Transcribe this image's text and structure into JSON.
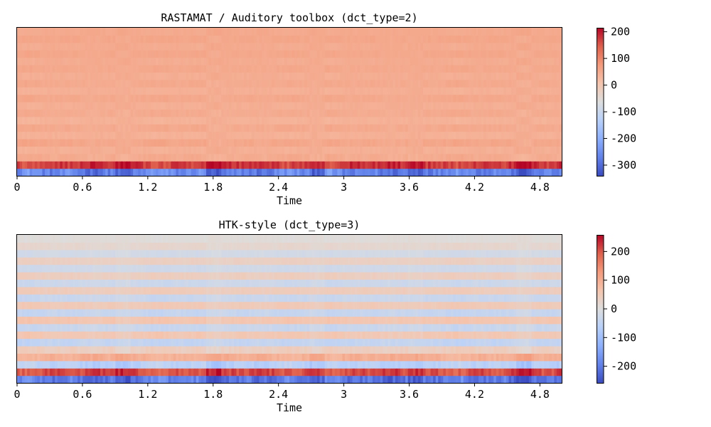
{
  "chart_data": [
    {
      "type": "heatmap",
      "title": "RASTAMAT / Auditory toolbox (dct_type=2)",
      "xlabel": "Time",
      "ylabel": "",
      "x_ticks": [
        "0",
        "0.6",
        "1.2",
        "1.8",
        "2.4",
        "3",
        "3.6",
        "4.2",
        "4.8"
      ],
      "x_tick_values": [
        0,
        0.6,
        1.2,
        1.8,
        2.4,
        3.0,
        3.6,
        4.2,
        4.8
      ],
      "xlim": [
        0,
        5.0
      ],
      "colormap": "coolwarm",
      "colorbar": {
        "ticks": [
          "200",
          "100",
          "0",
          "-100",
          "-200",
          "-300"
        ],
        "tick_values": [
          200,
          100,
          0,
          -100,
          -200,
          -300
        ],
        "range": [
          -340,
          215
        ]
      },
      "n_coefficients": 20,
      "n_frames": 216,
      "row_levels": [
        -265,
        175,
        48,
        40,
        55,
        38,
        50,
        36,
        48,
        42,
        52,
        40,
        50,
        44,
        52,
        46,
        54,
        48,
        55,
        50
      ],
      "row_variation": [
        55,
        35,
        10,
        8,
        9,
        7,
        8,
        7,
        7,
        6,
        7,
        6,
        7,
        6,
        6,
        6,
        6,
        6,
        6,
        5
      ],
      "grid": false,
      "legend": "none"
    },
    {
      "type": "heatmap",
      "title": "HTK-style (dct_type=3)",
      "xlabel": "Time",
      "ylabel": "",
      "x_ticks": [
        "0",
        "0.6",
        "1.2",
        "1.8",
        "2.4",
        "3",
        "3.6",
        "4.2",
        "4.8"
      ],
      "x_tick_values": [
        0,
        0.6,
        1.2,
        1.8,
        2.4,
        3.0,
        3.6,
        4.2,
        4.8
      ],
      "xlim": [
        0,
        5.0
      ],
      "colormap": "coolwarm",
      "colorbar": {
        "ticks": [
          "200",
          "100",
          "0",
          "-100",
          "-200"
        ],
        "tick_values": [
          200,
          100,
          0,
          -100,
          -200
        ],
        "range": [
          -258,
          258
        ]
      },
      "n_coefficients": 20,
      "n_frames": 216,
      "row_levels": [
        -200,
        205,
        -60,
        95,
        40,
        -45,
        55,
        -35,
        60,
        -40,
        50,
        -35,
        45,
        -30,
        40,
        -25,
        35,
        -20,
        20,
        5
      ],
      "row_variation": [
        50,
        35,
        25,
        18,
        15,
        14,
        12,
        12,
        10,
        10,
        9,
        9,
        8,
        8,
        8,
        7,
        7,
        6,
        6,
        5
      ],
      "grid": false,
      "legend": "none"
    }
  ]
}
